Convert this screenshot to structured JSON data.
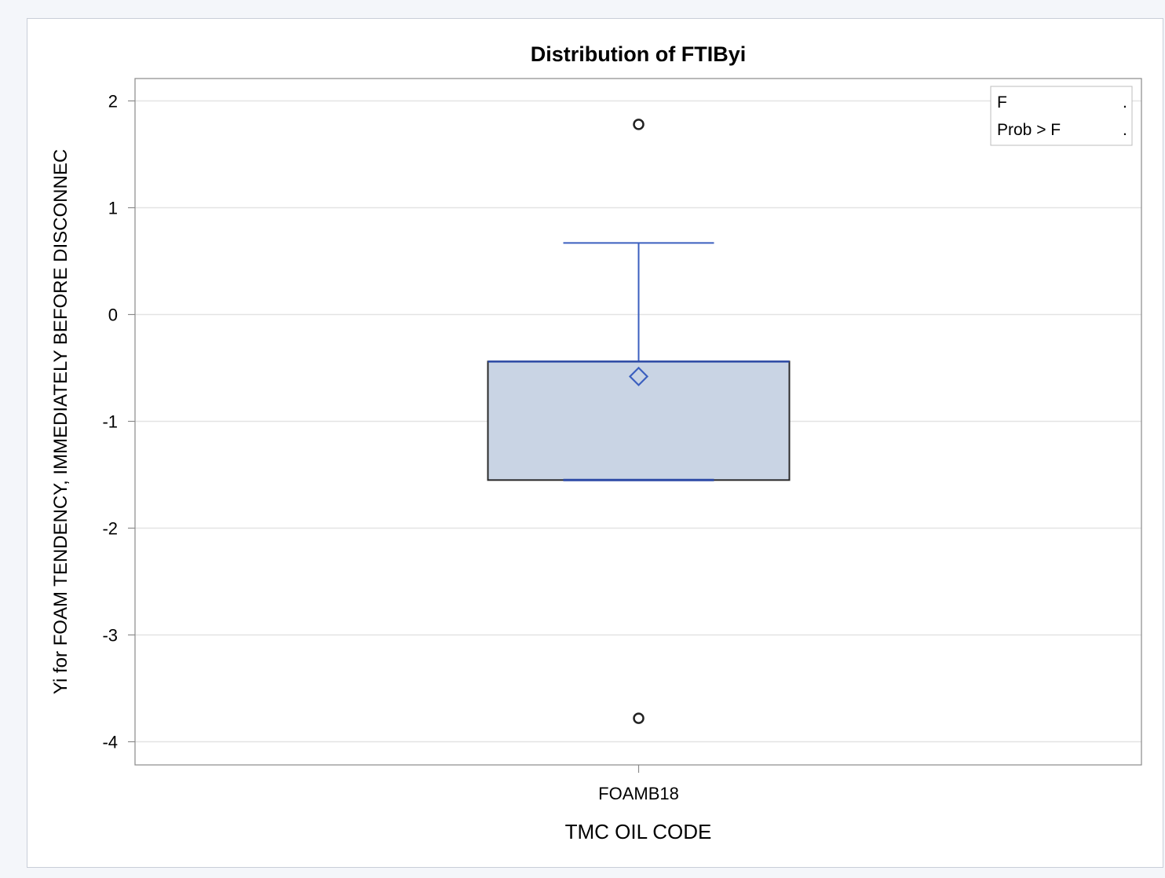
{
  "chart_data": {
    "type": "box",
    "title": "Distribution of FTIByi",
    "xlabel": "TMC OIL CODE",
    "ylabel": "Yi for FOAM TENDENCY, IMMEDIATELY BEFORE DISCONNEC",
    "categories": [
      "FOAMB18"
    ],
    "ylim": [
      -4.22,
      2.2
    ],
    "yticks": [
      2,
      1,
      0,
      -1,
      -2,
      -3,
      -4
    ],
    "grid": true,
    "boxes": [
      {
        "category": "FOAMB18",
        "whisker_low": -1.55,
        "q1": -1.55,
        "median": -1.55,
        "q3": -0.44,
        "whisker_high": 0.67,
        "mean": -0.58,
        "outliers": [
          1.78,
          -3.78
        ]
      }
    ],
    "inset_stats": [
      {
        "label": "F",
        "value": "."
      },
      {
        "label": "Prob > F",
        "value": "."
      }
    ],
    "colors": {
      "box_fill": "#c9d4e4",
      "box_edge": "#2a2a2a",
      "whisker": "#3b5fbf",
      "median": "#2d4aa6",
      "mean_marker": "#3b5fbf",
      "grid": "#e3e3e3",
      "axis": "#8a8a8a"
    }
  }
}
